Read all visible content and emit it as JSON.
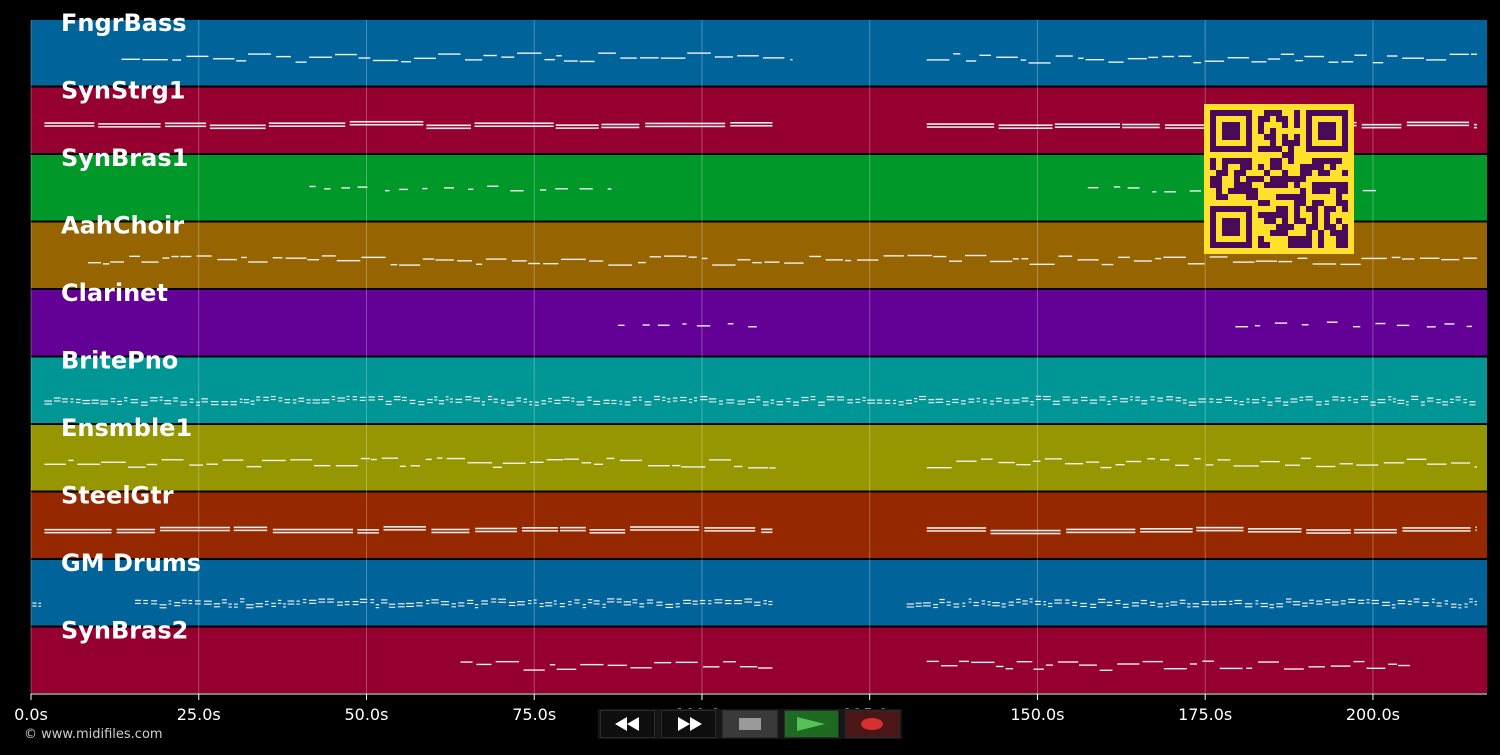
{
  "app": {
    "copyright": "© www.midifiles.com"
  },
  "timeline": {
    "max_seconds": 217,
    "ticks": [
      {
        "value": 0,
        "label": "0.0s"
      },
      {
        "value": 25,
        "label": "25.0s"
      },
      {
        "value": 50,
        "label": "50.0s"
      },
      {
        "value": 75,
        "label": "75.0s"
      },
      {
        "value": 100,
        "label": "100.0s"
      },
      {
        "value": 125,
        "label": "125.0s"
      },
      {
        "value": 150,
        "label": "150.0s"
      },
      {
        "value": 175,
        "label": "175.0s"
      },
      {
        "value": 200,
        "label": "200.0s"
      }
    ]
  },
  "tracks": [
    {
      "name": "FngrBass",
      "color": "#00639a",
      "segments": [
        [
          13.5,
          113.5
        ],
        [
          133.5,
          215.5
        ]
      ],
      "density": "medium"
    },
    {
      "name": "SynStrg1",
      "color": "#960030",
      "segments": [
        [
          2,
          110.5
        ],
        [
          133.5,
          215.5
        ]
      ],
      "density": "sustained"
    },
    {
      "name": "SynBras1",
      "color": "#009828",
      "segments": [
        [
          41.5,
          86.5
        ],
        [
          157.5,
          202.5
        ]
      ],
      "density": "sparse"
    },
    {
      "name": "AahChoir",
      "color": "#966400",
      "segments": [
        [
          8.5,
          215.5
        ]
      ],
      "density": "medium"
    },
    {
      "name": "Clarinet",
      "color": "#630096",
      "segments": [
        [
          87.5,
          109.5
        ],
        [
          179.5,
          215.5
        ]
      ],
      "density": "sparse"
    },
    {
      "name": "BritePno",
      "color": "#009696",
      "segments": [
        [
          2,
          215.5
        ]
      ],
      "density": "dense"
    },
    {
      "name": "Ensmble1",
      "color": "#969600",
      "segments": [
        [
          2,
          111
        ],
        [
          133.5,
          215.5
        ]
      ],
      "density": "medium"
    },
    {
      "name": "SteelGtr",
      "color": "#962800",
      "segments": [
        [
          2,
          110.5
        ],
        [
          133.5,
          215.5
        ]
      ],
      "density": "sustained"
    },
    {
      "name": "GM Drums",
      "color": "#00639a",
      "segments": [
        [
          0.2,
          1.5
        ],
        [
          15.5,
          110.5
        ],
        [
          130.5,
          215.5
        ]
      ],
      "density": "dense"
    },
    {
      "name": "SynBras2",
      "color": "#960030",
      "segments": [
        [
          64,
          110.5
        ],
        [
          133.5,
          205.5
        ]
      ],
      "density": "medium"
    }
  ],
  "transport": {
    "rewind_icon": "rewind-icon",
    "forward_icon": "fast-forward-icon",
    "stop_icon": "stop-icon",
    "play_icon": "play-icon",
    "record_icon": "record-icon",
    "play_color": "#55c255",
    "record_color": "#d83030"
  },
  "overlay": {
    "qr_icon": "qr-code-icon",
    "qr_bg": "#ffe02a",
    "qr_fg": "#4a0a5a"
  }
}
